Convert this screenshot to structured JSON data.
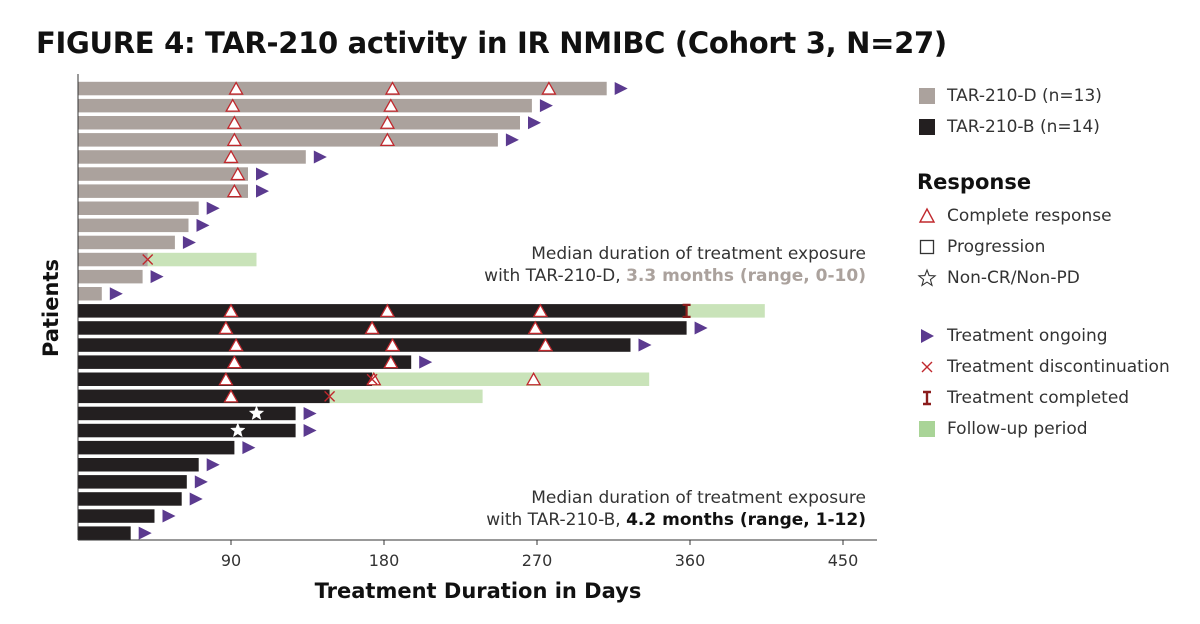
{
  "title": "FIGURE 4: TAR-210 activity in IR NMIBC (Cohort 3, N=27)",
  "chart_data": {
    "type": "swimmer",
    "xlabel": "Treatment Duration in Days",
    "ylabel": "Patients",
    "xlim": [
      0,
      470
    ],
    "xticks": [
      90,
      180,
      270,
      360,
      450
    ],
    "colors": {
      "tar210d": "#aba29d",
      "tar210b": "#231f20",
      "followup": "#c9e3b9",
      "cr": "#c0282d",
      "ongoing": "#5b3a8f",
      "discontinued": "#c0282d",
      "completed": "#8b1c1c",
      "other": "#ffffff"
    },
    "series": [
      {
        "name": "TAR-210-D (n=13)",
        "group": "D",
        "patients": [
          {
            "duration": 311,
            "cr": [
              93,
              185,
              277
            ],
            "ongoing": true
          },
          {
            "duration": 267,
            "cr": [
              91,
              184
            ],
            "ongoing": true
          },
          {
            "duration": 260,
            "cr": [
              92,
              182
            ],
            "ongoing": true
          },
          {
            "duration": 247,
            "cr": [
              92,
              182
            ],
            "ongoing": true
          },
          {
            "duration": 134,
            "cr": [
              90
            ],
            "ongoing": true
          },
          {
            "duration": 100,
            "cr": [
              94
            ],
            "ongoing": true
          },
          {
            "duration": 100,
            "cr": [
              92
            ],
            "ongoing": true
          },
          {
            "duration": 71,
            "ongoing": true
          },
          {
            "duration": 65,
            "ongoing": true
          },
          {
            "duration": 57,
            "ongoing": true
          },
          {
            "duration": 41,
            "discontinued": 41,
            "followup_end": 105
          },
          {
            "duration": 38,
            "ongoing": true
          },
          {
            "duration": 14,
            "ongoing": true
          }
        ]
      },
      {
        "name": "TAR-210-B (n=14)",
        "group": "B",
        "patients": [
          {
            "duration": 358,
            "cr": [
              90,
              182,
              272
            ],
            "completed": 358,
            "followup_end": 404
          },
          {
            "duration": 358,
            "cr": [
              87,
              173,
              269
            ],
            "ongoing": true
          },
          {
            "duration": 325,
            "cr": [
              93,
              185,
              275
            ],
            "ongoing": true
          },
          {
            "duration": 196,
            "cr": [
              92,
              184
            ],
            "ongoing": true
          },
          {
            "duration": 173,
            "cr": [
              87,
              174,
              268
            ],
            "discontinued": 173,
            "followup_end": 336
          },
          {
            "duration": 148,
            "cr": [
              90
            ],
            "discontinued": 148,
            "followup_end": 238
          },
          {
            "duration": 128,
            "noncr": [
              105
            ],
            "ongoing": true
          },
          {
            "duration": 128,
            "noncr": [
              94
            ],
            "ongoing": true
          },
          {
            "duration": 92,
            "ongoing": true
          },
          {
            "duration": 71,
            "ongoing": true
          },
          {
            "duration": 64,
            "ongoing": true
          },
          {
            "duration": 61,
            "ongoing": true
          },
          {
            "duration": 45,
            "ongoing": true
          },
          {
            "duration": 31,
            "ongoing": true
          }
        ]
      }
    ],
    "annotations": [
      {
        "line1": "Median duration of treatment exposure",
        "line2_prefix": "with TAR-210-D, ",
        "line2_bold": "3.3 months (range, 0-10)"
      },
      {
        "line1": "Median duration of treatment exposure",
        "line2_prefix": "with TAR-210-B, ",
        "line2_bold": "4.2 months (range, 1-12)"
      }
    ],
    "legend": {
      "groups": [
        "TAR-210-D (n=13)",
        "TAR-210-B (n=14)"
      ],
      "response_title": "Response",
      "response": [
        "Complete response",
        "Progression",
        "Non-CR/Non-PD"
      ],
      "events": [
        "Treatment ongoing",
        "Treatment discontinuation",
        "Treatment completed",
        "Follow-up period"
      ]
    }
  }
}
